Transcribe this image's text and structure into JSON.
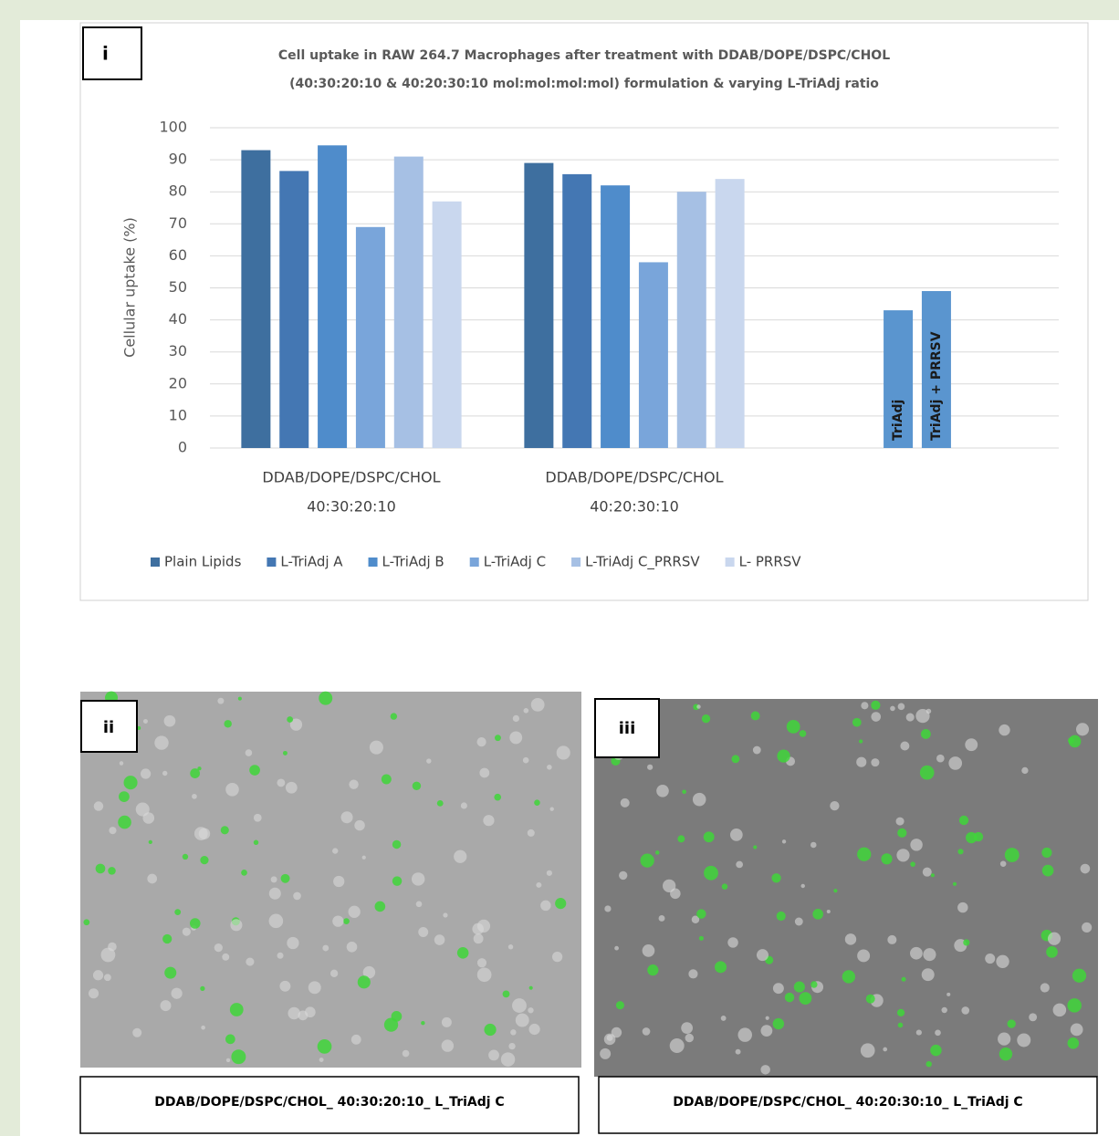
{
  "chart_data": {
    "type": "bar",
    "panel_label": "i",
    "title": [
      "Cell uptake in RAW 264.7 Macrophages after treatment with DDAB/DOPE/DSPC/CHOL",
      "(40:30:20:10 & 40:20:30:10 mol:mol:mol:mol) formulation & varying L-TriAdj ratio"
    ],
    "ylabel": "Cellular uptake (%)",
    "categories": [
      [
        "DDAB/DOPE/DSPC/CHOL",
        "40:30:20:10"
      ],
      [
        "DDAB/DOPE/DSPC/CHOL",
        "40:20:30:10"
      ],
      null
    ],
    "series": [
      {
        "name": "Plain Lipids",
        "color": "#3e6f9f",
        "values": [
          93,
          89,
          null
        ]
      },
      {
        "name": "L-TriAdj A",
        "color": "#4477b3",
        "values": [
          86.5,
          85.5,
          null
        ]
      },
      {
        "name": "L-TriAdj B",
        "color": "#4f8ccb",
        "values": [
          94.5,
          82,
          null
        ]
      },
      {
        "name": "L-TriAdj C",
        "color": "#79a5da",
        "values": [
          69,
          58,
          null
        ]
      },
      {
        "name": "L-TriAdj C_PRRSV",
        "color": "#a6c0e4",
        "values": [
          91,
          80,
          null
        ]
      },
      {
        "name": "L- PRRSV",
        "color": "#c9d7ee",
        "values": [
          77,
          84,
          null
        ]
      }
    ],
    "extra_bars": {
      "labels": [
        "TriAdj",
        "TriAdj + PRRSV"
      ],
      "values": [
        43,
        49
      ],
      "color": "#5a95cf"
    },
    "ylim": [
      0,
      100
    ],
    "yticks": [
      0,
      10,
      20,
      30,
      40,
      50,
      60,
      70,
      80,
      90,
      100
    ],
    "grid": true,
    "legend": "bottom"
  },
  "images": [
    {
      "label": "ii",
      "caption": "DDAB/DOPE/DSPC/CHOL_ 40:30:20:10_ L_TriAdj C"
    },
    {
      "label": "iii",
      "caption": "DDAB/DOPE/DSPC/CHOL_ 40:20:30:10_ L_TriAdj C"
    }
  ]
}
